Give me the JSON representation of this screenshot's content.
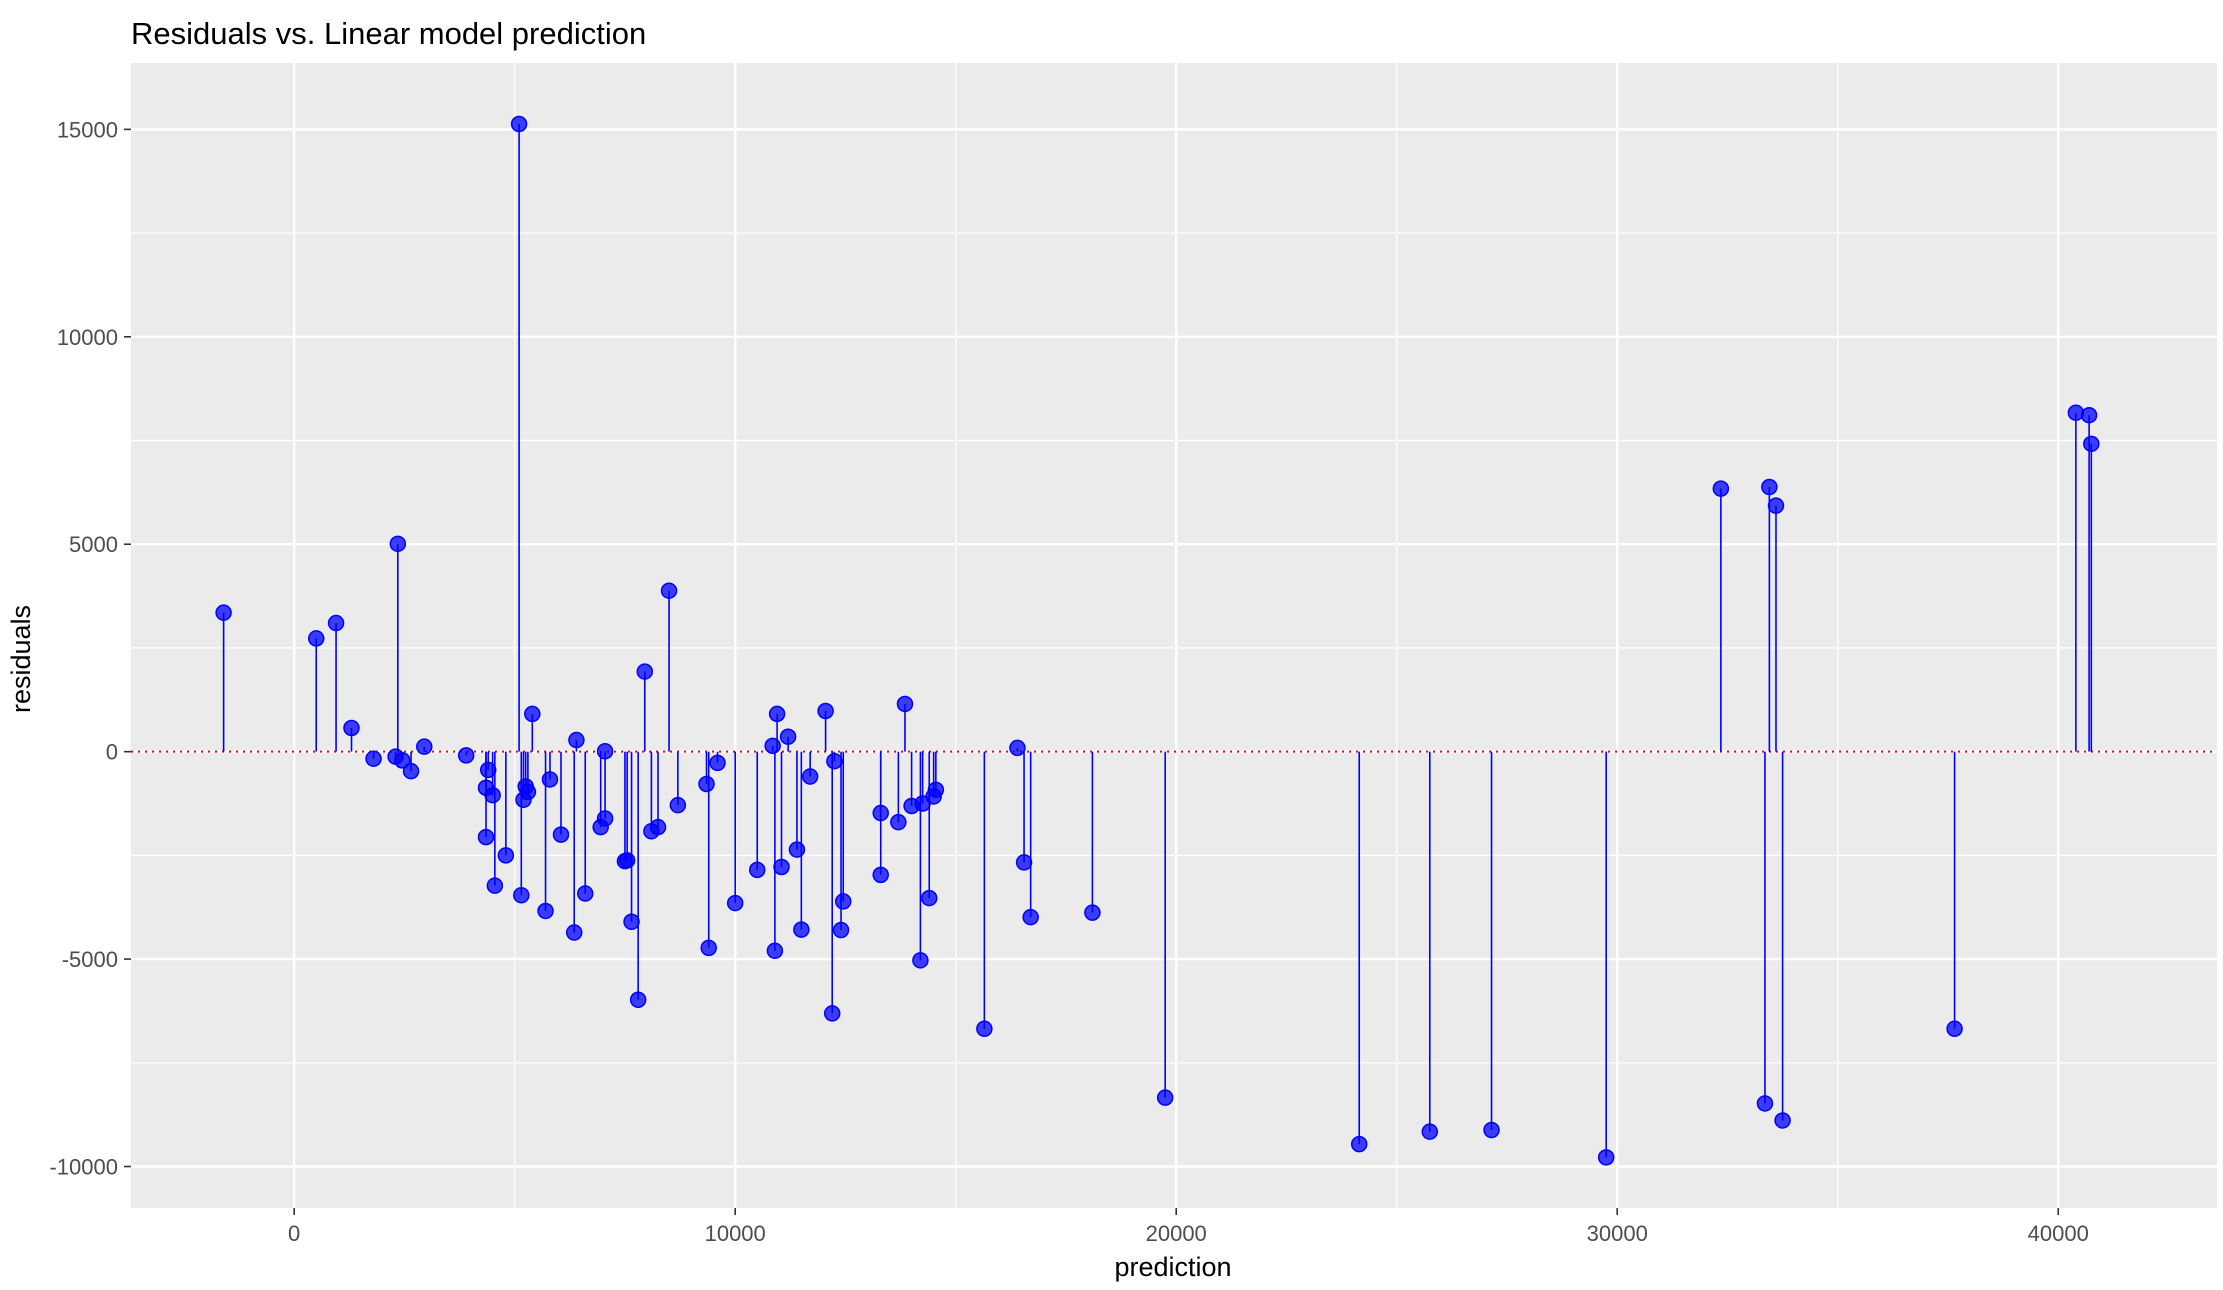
{
  "chart_data": {
    "type": "scatter",
    "title": "Residuals vs. Linear model prediction",
    "xlabel": "prediction",
    "ylabel": "residuals",
    "xlim": [
      -3700,
      43600
    ],
    "ylim": [
      -11000,
      16600
    ],
    "x_ticks": [
      0,
      10000,
      20000,
      30000,
      40000
    ],
    "x_tick_labels": [
      "0",
      "10000",
      "20000",
      "30000",
      "40000"
    ],
    "y_ticks": [
      -10000,
      -5000,
      0,
      5000,
      10000,
      15000
    ],
    "y_tick_labels": [
      "-10000",
      "-5000",
      "0",
      "5000",
      "10000",
      "15000"
    ],
    "reference_line": {
      "y": 0,
      "color": "#ff0000",
      "style": "dotted"
    },
    "grid": true,
    "colors": {
      "panel": "#ebebeb",
      "grid": "#ffffff",
      "point": "#0000ff",
      "stem": "#0000ff"
    },
    "points": [
      {
        "x": -1600,
        "y": 3350
      },
      {
        "x": 500,
        "y": 2730
      },
      {
        "x": 950,
        "y": 3100
      },
      {
        "x": 1300,
        "y": 570
      },
      {
        "x": 1800,
        "y": -170
      },
      {
        "x": 2300,
        "y": -120
      },
      {
        "x": 2350,
        "y": 5010
      },
      {
        "x": 2450,
        "y": -210
      },
      {
        "x": 2650,
        "y": -470
      },
      {
        "x": 2950,
        "y": 120
      },
      {
        "x": 3900,
        "y": -90
      },
      {
        "x": 4350,
        "y": -870
      },
      {
        "x": 4350,
        "y": -2060
      },
      {
        "x": 4400,
        "y": -440
      },
      {
        "x": 4500,
        "y": -1050
      },
      {
        "x": 4550,
        "y": -3230
      },
      {
        "x": 4800,
        "y": -2500
      },
      {
        "x": 5100,
        "y": 15130
      },
      {
        "x": 5150,
        "y": -3460
      },
      {
        "x": 5200,
        "y": -1160
      },
      {
        "x": 5250,
        "y": -840
      },
      {
        "x": 5300,
        "y": -970
      },
      {
        "x": 5400,
        "y": 910
      },
      {
        "x": 5700,
        "y": -3840
      },
      {
        "x": 5800,
        "y": -670
      },
      {
        "x": 6050,
        "y": -2000
      },
      {
        "x": 6350,
        "y": -4360
      },
      {
        "x": 6400,
        "y": 280
      },
      {
        "x": 6600,
        "y": -3420
      },
      {
        "x": 6950,
        "y": -1820
      },
      {
        "x": 7050,
        "y": 10
      },
      {
        "x": 7050,
        "y": -1610
      },
      {
        "x": 7500,
        "y": -2640
      },
      {
        "x": 7550,
        "y": -2620
      },
      {
        "x": 7650,
        "y": -4100
      },
      {
        "x": 7800,
        "y": -5980
      },
      {
        "x": 7950,
        "y": 1930
      },
      {
        "x": 8100,
        "y": -1920
      },
      {
        "x": 8250,
        "y": -1820
      },
      {
        "x": 8500,
        "y": 3880
      },
      {
        "x": 8700,
        "y": -1290
      },
      {
        "x": 9350,
        "y": -780
      },
      {
        "x": 9400,
        "y": -4730
      },
      {
        "x": 9600,
        "y": -270
      },
      {
        "x": 10000,
        "y": -3650
      },
      {
        "x": 10500,
        "y": -2850
      },
      {
        "x": 10850,
        "y": 140
      },
      {
        "x": 10900,
        "y": -4800
      },
      {
        "x": 10950,
        "y": 910
      },
      {
        "x": 11050,
        "y": -2780
      },
      {
        "x": 11200,
        "y": 360
      },
      {
        "x": 11400,
        "y": -2360
      },
      {
        "x": 11500,
        "y": -4290
      },
      {
        "x": 11700,
        "y": -600
      },
      {
        "x": 12050,
        "y": 980
      },
      {
        "x": 12200,
        "y": -6310
      },
      {
        "x": 12250,
        "y": -230
      },
      {
        "x": 12400,
        "y": -4300
      },
      {
        "x": 12450,
        "y": -3610
      },
      {
        "x": 13300,
        "y": -2970
      },
      {
        "x": 13300,
        "y": -1480
      },
      {
        "x": 13700,
        "y": -1700
      },
      {
        "x": 13850,
        "y": 1150
      },
      {
        "x": 14000,
        "y": -1310
      },
      {
        "x": 14200,
        "y": -5030
      },
      {
        "x": 14250,
        "y": -1250
      },
      {
        "x": 14400,
        "y": -3530
      },
      {
        "x": 14500,
        "y": -1080
      },
      {
        "x": 14550,
        "y": -920
      },
      {
        "x": 15650,
        "y": -6680
      },
      {
        "x": 16400,
        "y": 90
      },
      {
        "x": 16550,
        "y": -2670
      },
      {
        "x": 16700,
        "y": -3990
      },
      {
        "x": 18100,
        "y": -3880
      },
      {
        "x": 19750,
        "y": -8340
      },
      {
        "x": 24150,
        "y": -9460
      },
      {
        "x": 25750,
        "y": -9160
      },
      {
        "x": 27150,
        "y": -9120
      },
      {
        "x": 29750,
        "y": -9780
      },
      {
        "x": 32350,
        "y": 6340
      },
      {
        "x": 33350,
        "y": -8480
      },
      {
        "x": 33450,
        "y": 6380
      },
      {
        "x": 33600,
        "y": 5930
      },
      {
        "x": 33750,
        "y": -8890
      },
      {
        "x": 37650,
        "y": -6680
      },
      {
        "x": 40400,
        "y": 8170
      },
      {
        "x": 40700,
        "y": 8110
      },
      {
        "x": 40750,
        "y": 7420
      }
    ]
  }
}
